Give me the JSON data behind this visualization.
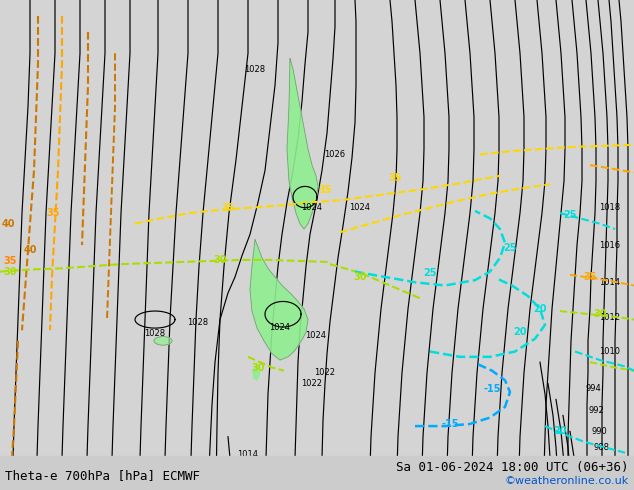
{
  "title_left": "Theta-e 700hPa [hPa] ECMWF",
  "title_right": "Sa 01-06-2024 18:00 UTC (06+36)",
  "copyright": "©weatheronline.co.uk",
  "bg_color": "#d4d4d4",
  "map_bg": "#d4d4d4",
  "title_fontsize": 9,
  "copyright_color": "#0055cc",
  "copyright_fontsize": 8
}
